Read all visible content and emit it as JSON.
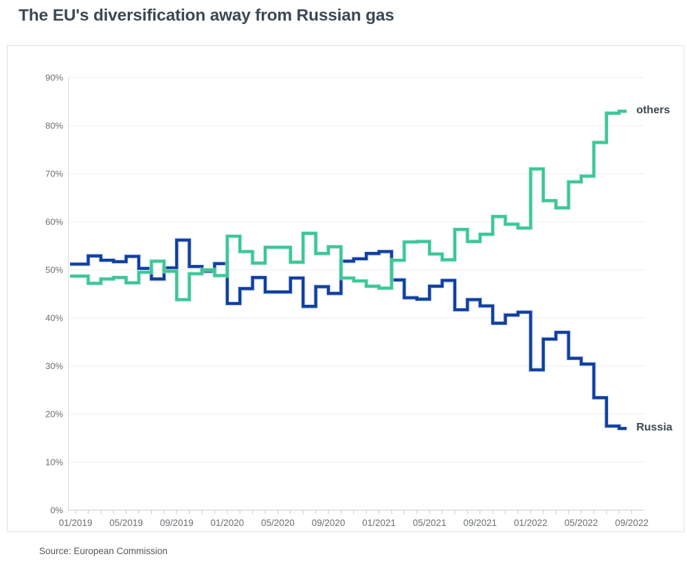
{
  "page": {
    "title": "The EU's diversification away from Russian gas",
    "source": "Source: European Commission"
  },
  "colors": {
    "russia_line": "#0f3f9f",
    "russia_halo": "#bdc9ea",
    "others_line": "#3cc795",
    "others_halo": "#c2ebdc",
    "title_text": "#3c4853",
    "axis_text": "#6a6e72",
    "grid": "#ededed"
  },
  "chart_data": {
    "type": "line",
    "step": true,
    "title": "The EU's diversification away from Russian gas",
    "xlabel": "",
    "ylabel": "",
    "ylim": [
      0,
      90
    ],
    "ytick_step": 10,
    "ytick_suffix": "%",
    "grid": "horizontal",
    "legend_position": "line-end-labels",
    "x": [
      "01/2019",
      "02/2019",
      "03/2019",
      "04/2019",
      "05/2019",
      "06/2019",
      "07/2019",
      "08/2019",
      "09/2019",
      "10/2019",
      "11/2019",
      "12/2019",
      "01/2020",
      "02/2020",
      "03/2020",
      "04/2020",
      "05/2020",
      "06/2020",
      "07/2020",
      "08/2020",
      "09/2020",
      "10/2020",
      "11/2020",
      "12/2020",
      "01/2021",
      "02/2021",
      "03/2021",
      "04/2021",
      "05/2021",
      "06/2021",
      "07/2021",
      "08/2021",
      "09/2021",
      "10/2021",
      "11/2021",
      "12/2021",
      "01/2022",
      "02/2022",
      "03/2022",
      "04/2022",
      "05/2022",
      "06/2022",
      "07/2022",
      "08/2022"
    ],
    "xtick_labels": [
      "01/2019",
      "05/2019",
      "09/2019",
      "01/2020",
      "05/2020",
      "09/2020",
      "01/2021",
      "05/2021",
      "09/2021",
      "01/2022",
      "05/2022",
      "09/2022"
    ],
    "series": [
      {
        "name": "Russia",
        "color": "#0f3f9f",
        "values": [
          51.2,
          52.9,
          52.0,
          51.7,
          52.8,
          50.3,
          48.1,
          50.4,
          56.2,
          50.7,
          49.7,
          51.3,
          43.0,
          46.1,
          48.4,
          45.4,
          45.4,
          48.3,
          42.4,
          46.5,
          45.1,
          51.8,
          52.3,
          53.4,
          53.8,
          47.9,
          44.2,
          43.9,
          46.6,
          47.8,
          41.7,
          43.8,
          42.5,
          38.9,
          40.6,
          41.2,
          29.2,
          35.6,
          37.0,
          31.6,
          30.4,
          23.4,
          17.5,
          17.0
        ]
      },
      {
        "name": "others",
        "color": "#3cc795",
        "values": [
          48.7,
          47.2,
          48.1,
          48.4,
          47.3,
          49.5,
          51.8,
          49.7,
          43.8,
          49.2,
          50.0,
          48.8,
          57.0,
          53.8,
          51.4,
          54.7,
          54.7,
          51.6,
          57.6,
          53.4,
          54.8,
          48.3,
          47.7,
          46.6,
          46.2,
          52.0,
          55.8,
          55.9,
          53.3,
          52.1,
          58.4,
          55.9,
          57.4,
          61.1,
          59.5,
          58.7,
          71.0,
          64.4,
          62.9,
          68.3,
          69.5,
          76.5,
          82.6,
          83.0
        ]
      }
    ]
  }
}
